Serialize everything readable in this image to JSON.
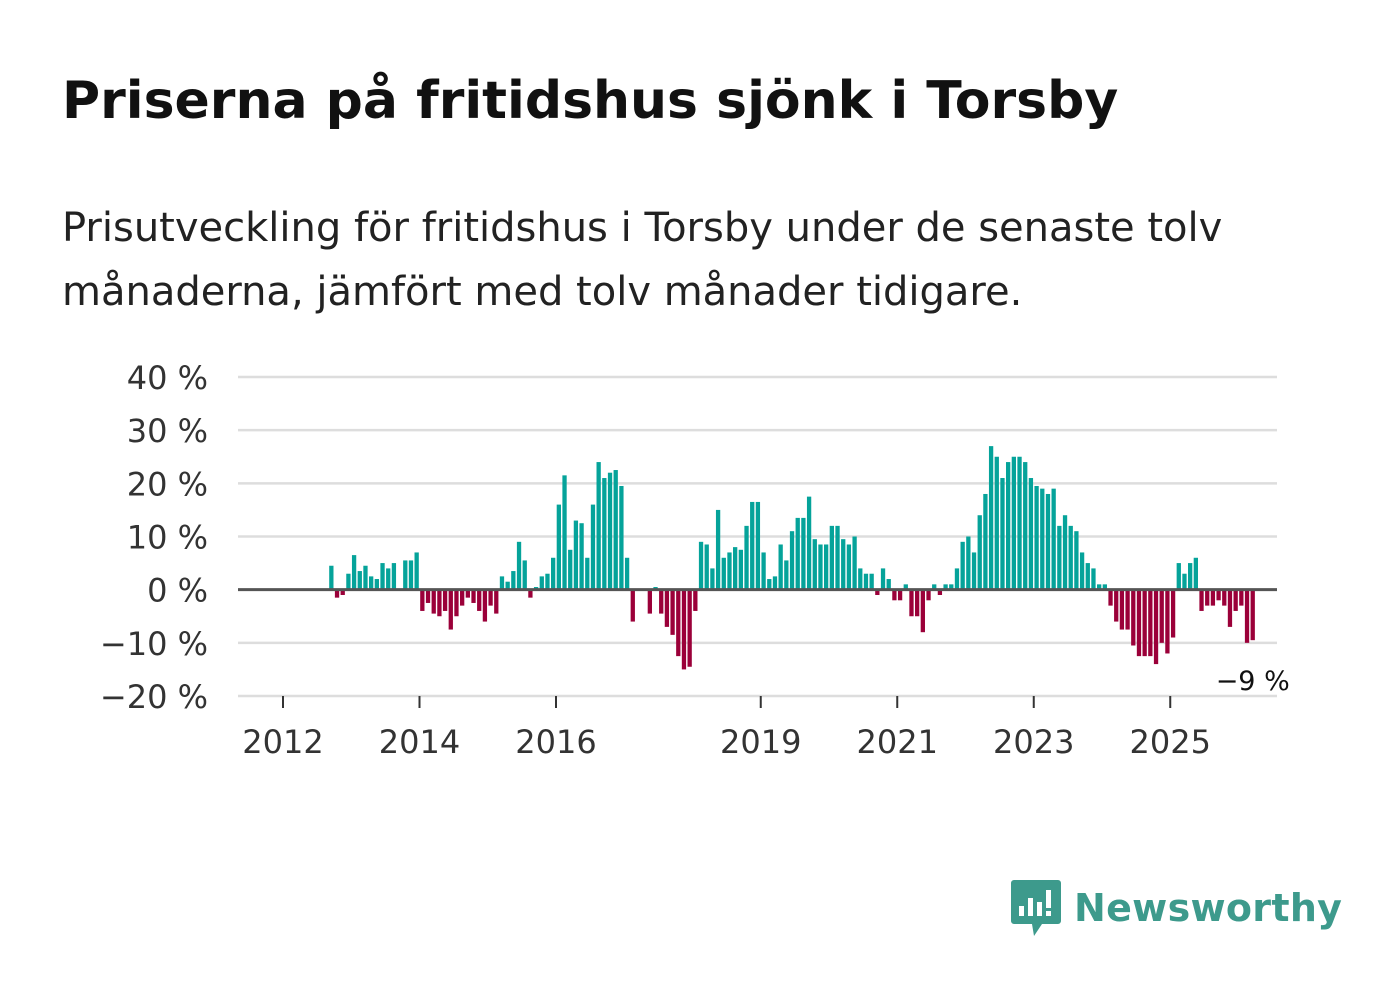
{
  "title": "Priserna på fritidshus sjönk i Torsby",
  "subtitle": "Prisutveckling för fritidshus i Torsby under de senaste tolv månaderna, jämfört med tolv månader tidigare.",
  "brand": {
    "name": "Newsworthy",
    "icon": "newsworthy-logo-icon"
  },
  "colors": {
    "positive": "#05a39a",
    "negative": "#9b0039",
    "grid": "#dddddd",
    "baseline": "#555555"
  },
  "chart_data": {
    "type": "bar",
    "title": "Priserna på fritidshus sjönk i Torsby",
    "xlabel": "",
    "ylabel": "",
    "ylim": [
      -20,
      40
    ],
    "y_ticks": [
      40,
      30,
      20,
      10,
      0,
      -10,
      -20
    ],
    "y_tick_labels": [
      "40 %",
      "30 %",
      "20 %",
      "10 %",
      "0 %",
      "−10 %",
      "−20 %"
    ],
    "x_ticks": [
      2012,
      2014,
      2016,
      2019,
      2021,
      2023,
      2025
    ],
    "x_tick_labels": [
      "2012",
      "2014",
      "2016",
      "2019",
      "2021",
      "2023",
      "2025"
    ],
    "grid": true,
    "unit": "%",
    "series": [
      {
        "name": "Prisutveckling",
        "start": "2012-01",
        "frequency": "monthly",
        "values": [
          null,
          null,
          null,
          null,
          null,
          null,
          null,
          null,
          4.5,
          -1.5,
          -1,
          3,
          6.5,
          3.5,
          4.5,
          2.5,
          2,
          5,
          4,
          5,
          null,
          5.5,
          5.5,
          7,
          -4,
          -2.5,
          -4.5,
          -5,
          -4,
          -7.5,
          -5,
          -3,
          -1.5,
          -2.5,
          -4,
          -6,
          -3,
          -4.5,
          2.5,
          1.5,
          3.5,
          9,
          5.5,
          -1.5,
          0.5,
          2.5,
          3,
          6,
          16,
          21.5,
          7.5,
          13,
          12.5,
          6,
          16,
          24,
          21,
          22,
          22.5,
          19.5,
          6,
          -6,
          null,
          null,
          -4.5,
          0.5,
          -4.5,
          -7,
          -8.5,
          -12.5,
          -15,
          -14.5,
          -4,
          9,
          8.5,
          4,
          15,
          6,
          7,
          8,
          7.5,
          12,
          16.5,
          16.5,
          7,
          2,
          2.5,
          8.5,
          5.5,
          11,
          13.5,
          13.5,
          17.5,
          9.5,
          8.5,
          8.5,
          12,
          12,
          9.5,
          8.5,
          10,
          4,
          3,
          3,
          -1,
          4,
          2,
          -2,
          -2,
          1,
          -5,
          -5,
          -8,
          -2,
          1,
          -1,
          1,
          1,
          4,
          9,
          10,
          7,
          14,
          18,
          27,
          25,
          21,
          24,
          25,
          25,
          24,
          21,
          19.5,
          19,
          18,
          19,
          12,
          14,
          12,
          11,
          7,
          5,
          4,
          1,
          1,
          -3,
          -6,
          -7.5,
          -7.5,
          -10.5,
          -12.5,
          -12.5,
          -12.5,
          -14,
          -10,
          -12,
          -9,
          5,
          3,
          5,
          6,
          -4,
          -3,
          -3,
          -2,
          -3,
          -7,
          -4,
          -3,
          -10,
          -9.5
        ]
      }
    ],
    "annotations": [
      {
        "text": "−9 %",
        "target": "last"
      }
    ]
  }
}
